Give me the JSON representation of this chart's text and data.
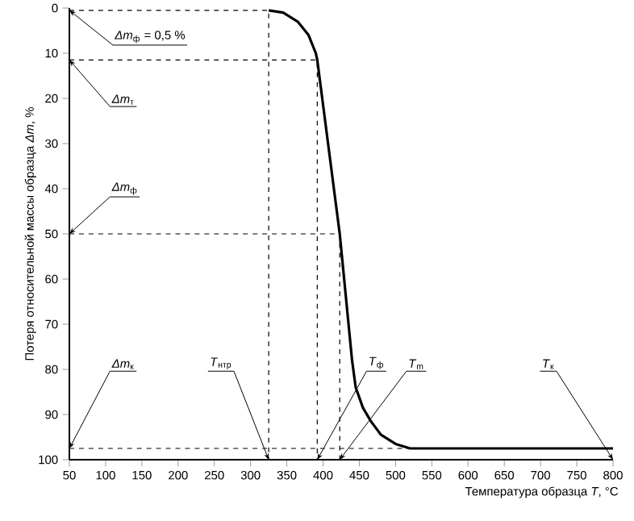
{
  "chart_data": {
    "type": "line",
    "xlabel": "Температура образца *T*, °C",
    "ylabel": "Потеря относительной массы образца *Δm*, %",
    "xlim": [
      50,
      800
    ],
    "ylim": [
      100,
      0
    ],
    "xticks": [
      50,
      100,
      150,
      200,
      250,
      300,
      350,
      400,
      450,
      500,
      550,
      600,
      650,
      700,
      750,
      800
    ],
    "yticks": [
      0,
      10,
      20,
      30,
      40,
      50,
      60,
      70,
      80,
      90,
      100
    ],
    "marker": "none",
    "series": [
      {
        "color": "#000000",
        "line_style": "solid",
        "x": [
          325,
          345,
          365,
          380,
          390,
          392,
          423,
          440,
          445,
          455,
          466,
          480,
          500,
          520,
          800
        ],
        "values": [
          0.5,
          1,
          3,
          6,
          10,
          11.5,
          50,
          78,
          84,
          88.5,
          91.5,
          94.5,
          96.5,
          97.5,
          97.5
        ]
      },
      {
        "color": "#000000",
        "line_style": "dashed",
        "x": [
          50,
          325,
          325
        ],
        "values": [
          0.5,
          0.5,
          100
        ]
      },
      {
        "color": "#000000",
        "line_style": "dashed",
        "x": [
          50,
          392,
          392
        ],
        "values": [
          11.5,
          11.5,
          100
        ]
      },
      {
        "color": "#000000",
        "line_style": "dashed",
        "x": [
          50,
          423,
          423
        ],
        "values": [
          50,
          50,
          100
        ]
      },
      {
        "color": "#000000",
        "line_style": "dashed",
        "x": [
          50,
          800
        ],
        "values": [
          97.5,
          97.5
        ]
      }
    ],
    "annotations": [
      {
        "text": "*Δm*$_{ф}$ = 0,5 %",
        "x": 50,
        "y": 0.5
      },
      {
        "text": "*Δm*$_{т}$",
        "x": 50,
        "y": 11.5
      },
      {
        "text": "*Δm*$_{ф}$",
        "x": 50,
        "y": 50
      },
      {
        "text": "*Δm*$_{к}$",
        "x": 50,
        "y": 97.5
      },
      {
        "text": "*T*$_{нтр}$",
        "x": 325,
        "y": 100
      },
      {
        "text": "*T*$_{ф}$",
        "x": 392,
        "y": 100
      },
      {
        "text": "*T*$_{m}$",
        "x": 423,
        "y": 100
      },
      {
        "text": "*T*$_{к}$",
        "x": 800,
        "y": 100
      }
    ]
  }
}
